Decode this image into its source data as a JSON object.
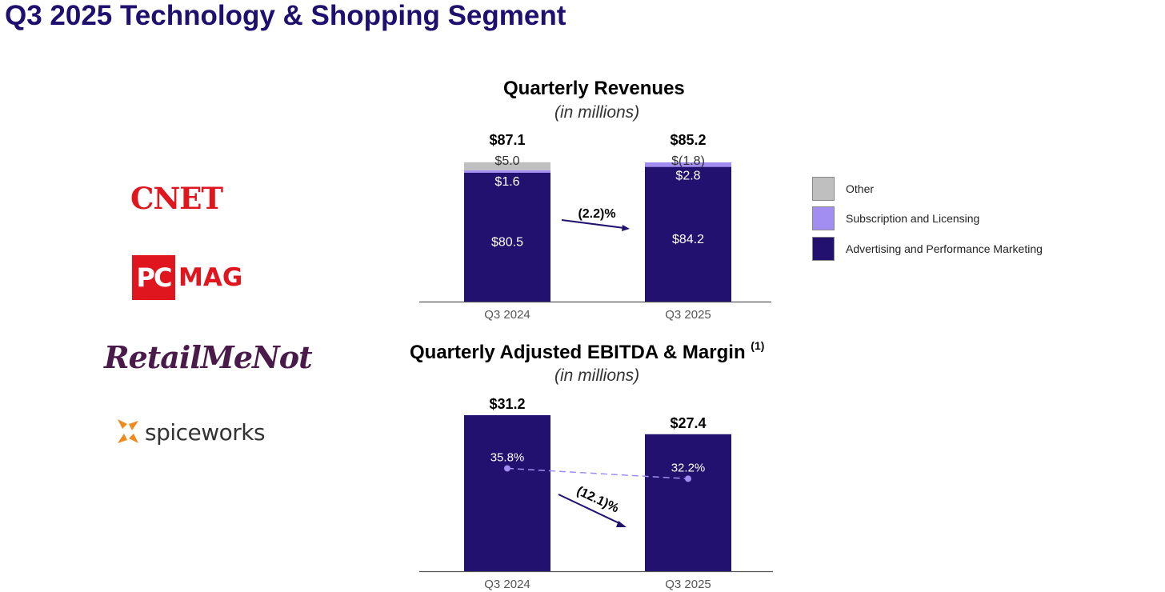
{
  "page": {
    "title": "Q3 2025 Technology & Shopping Segment"
  },
  "logos": {
    "cnet": "CNET",
    "pcmag_box": "PC",
    "pcmag_text": "MAG",
    "retailmenot": "RetailMeNot",
    "spiceworks": "spiceworks"
  },
  "colors": {
    "title": "#1f0f6e",
    "advertising": "#22116f",
    "subscription": "#a18ef0",
    "other": "#bfbfbf",
    "margin_line": "#a18ef0",
    "arrow": "#22116f",
    "axis": "#555555",
    "logo_red": "#e0161e",
    "retailmenot": "#4a1a4a",
    "spiceworks": "#f08a1c"
  },
  "chart_data": [
    {
      "type": "bar",
      "stacked": true,
      "title": "Quarterly Revenues",
      "subtitle": "(in millions)",
      "categories": [
        "Q3 2024",
        "Q3 2025"
      ],
      "series": [
        {
          "name": "Advertising and Performance Marketing",
          "values": [
            80.5,
            84.2
          ],
          "labels": [
            "$80.5",
            "$84.2"
          ]
        },
        {
          "name": "Subscription and Licensing",
          "values": [
            1.6,
            2.8
          ],
          "labels": [
            "$1.6",
            "$2.8"
          ]
        },
        {
          "name": "Other",
          "values": [
            5.0,
            -1.8
          ],
          "labels": [
            "$5.0",
            "$(1.8)"
          ]
        }
      ],
      "totals": [
        "$87.1",
        "$85.2"
      ],
      "change_label": "(2.2)%",
      "legend": [
        "Other",
        "Subscription and Licensing",
        "Advertising and Performance Marketing"
      ],
      "legend_position": "right"
    },
    {
      "type": "bar",
      "title": "Quarterly Adjusted EBITDA & Margin",
      "title_superscript": "(1)",
      "subtitle": "(in millions)",
      "categories": [
        "Q3 2024",
        "Q3 2025"
      ],
      "values": [
        31.2,
        27.4
      ],
      "value_labels": [
        "$31.2",
        "$27.4"
      ],
      "margin": [
        35.8,
        32.2
      ],
      "margin_labels": [
        "35.8%",
        "32.2%"
      ],
      "change_label": "(12.1)%"
    }
  ]
}
